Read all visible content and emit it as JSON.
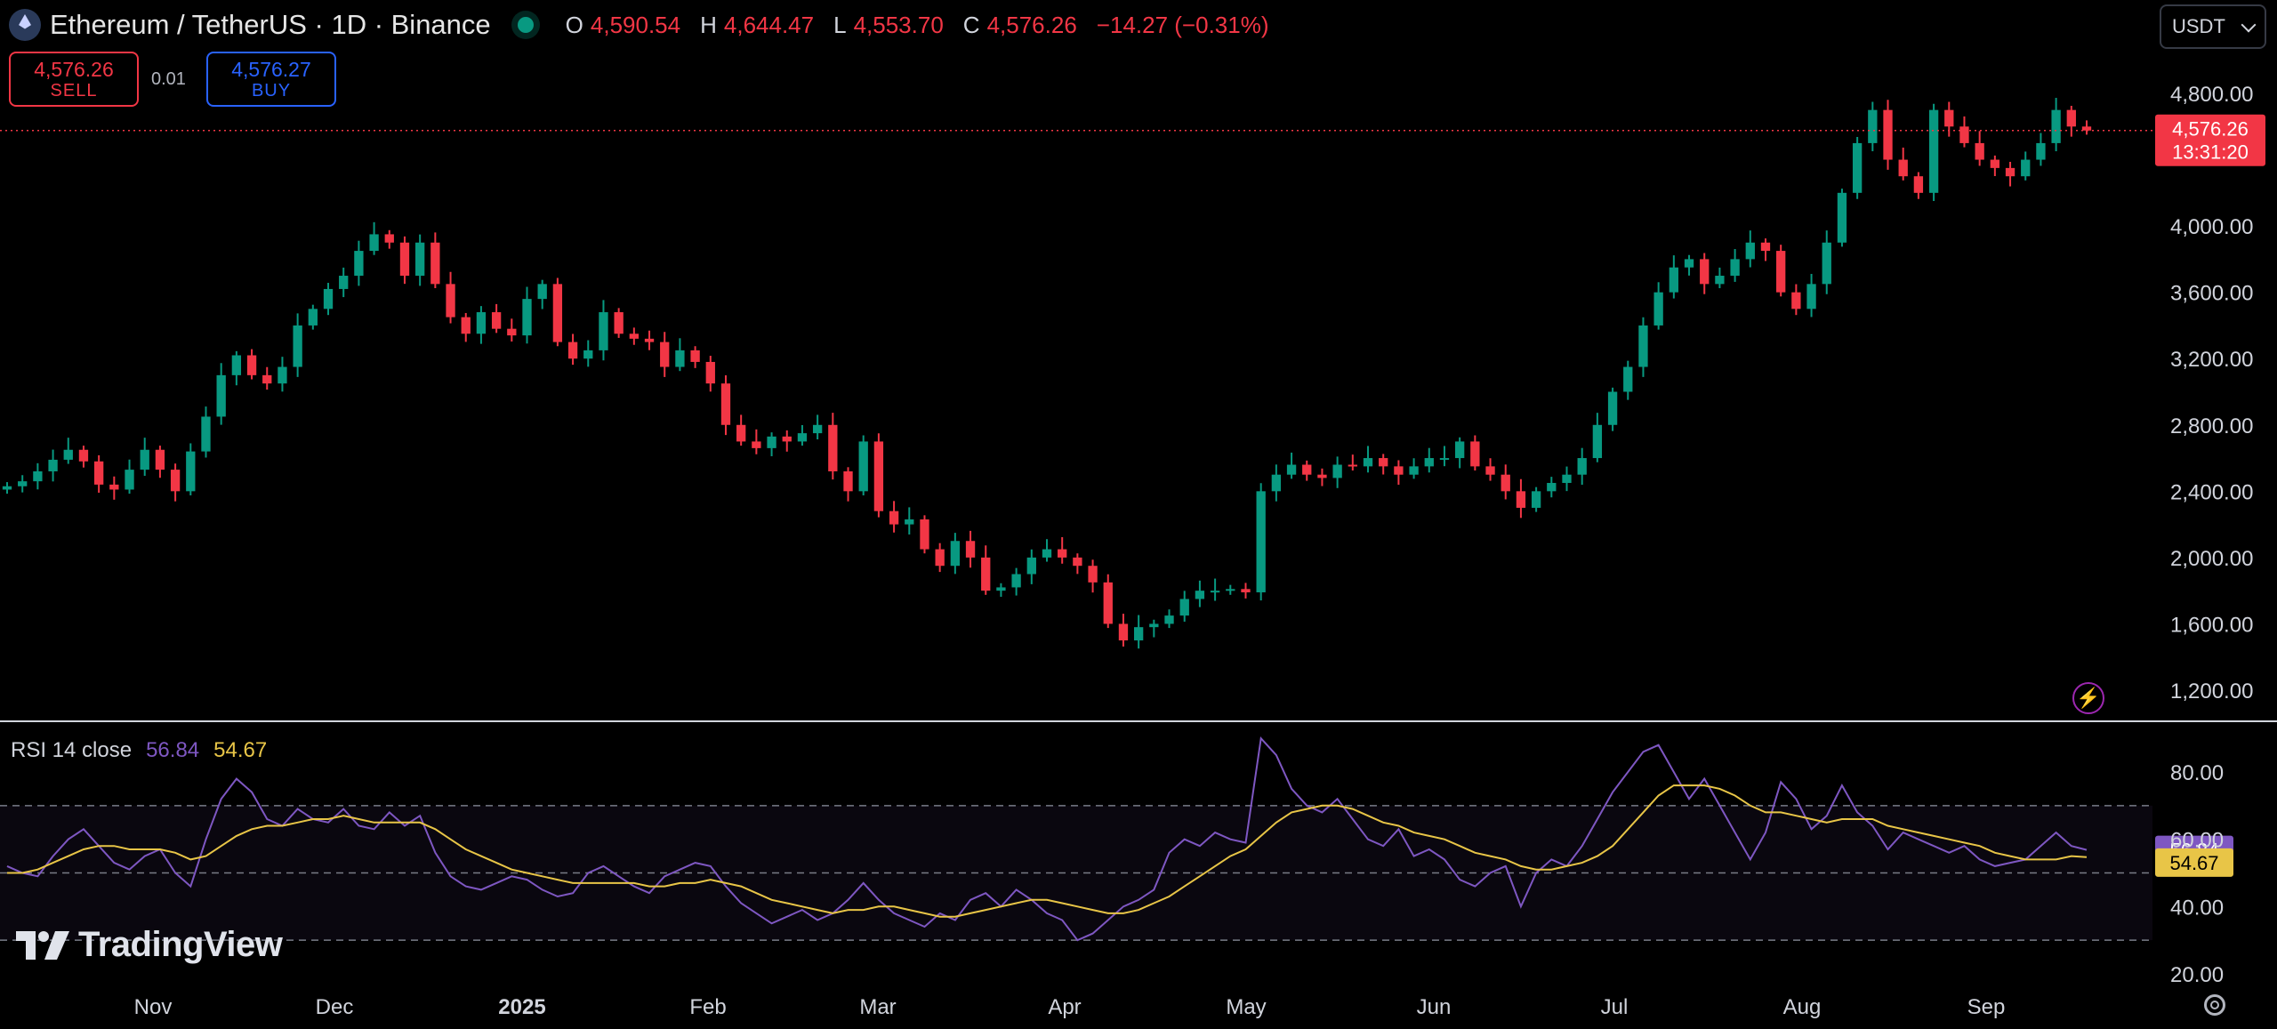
{
  "header": {
    "symbol_title": "Ethereum / TetherUS · 1D · Binance",
    "open_label": "O",
    "open_value": "4,590.54",
    "high_label": "H",
    "high_value": "4,644.47",
    "low_label": "L",
    "low_value": "4,553.70",
    "close_label": "C",
    "close_value": "4,576.26",
    "change": "−14.27 (−0.31%)"
  },
  "trade": {
    "sell_price": "4,576.26",
    "sell_label": "SELL",
    "spread": "0.01",
    "buy_price": "4,576.27",
    "buy_label": "BUY"
  },
  "currency_selector": "USDT",
  "price_badge": {
    "price": "4,576.26",
    "countdown": "13:31:20"
  },
  "rsi": {
    "legend_label": "RSI 14 close",
    "rsi_value": "56.84",
    "ma_value": "54.67"
  },
  "branding": {
    "logo_text": "TradingView"
  },
  "icons": {
    "symbol": "ethereum-icon",
    "live": "market-open-dot-icon",
    "flash": "lightning-icon",
    "settings": "gear-icon",
    "logo": "tradingview-logo-icon"
  },
  "colors": {
    "up": "#089981",
    "down": "#f23645",
    "rsi_line": "#7e57c2",
    "rsi_ma": "#e8c547",
    "buy": "#2962ff",
    "flash": "#9c27b0"
  },
  "chart_data": [
    {
      "type": "candlestick",
      "title": "Ethereum / TetherUS · 1D · Binance",
      "ylim": [
        1100,
        5000
      ],
      "y_ticks": [
        "4,800.00",
        "4,000.00",
        "3,600.00",
        "3,200.00",
        "2,800.00",
        "2,400.00",
        "2,000.00",
        "1,600.00",
        "1,200.00"
      ],
      "x_labels": [
        "Nov",
        "Dec",
        "2025",
        "Feb",
        "Mar",
        "Apr",
        "May",
        "Jun",
        "Jul",
        "Aug",
        "Sep"
      ],
      "last_price": 4576.26,
      "close_series": [
        2430,
        2460,
        2520,
        2590,
        2650,
        2580,
        2440,
        2410,
        2530,
        2650,
        2530,
        2400,
        2640,
        2850,
        3100,
        3220,
        3100,
        3050,
        3150,
        3400,
        3500,
        3620,
        3700,
        3850,
        3950,
        3900,
        3700,
        3900,
        3650,
        3450,
        3350,
        3480,
        3380,
        3340,
        3560,
        3650,
        3300,
        3200,
        3250,
        3480,
        3350,
        3320,
        3300,
        3150,
        3250,
        3180,
        3050,
        2800,
        2700,
        2660,
        2730,
        2700,
        2750,
        2800,
        2520,
        2400,
        2700,
        2280,
        2200,
        2230,
        2050,
        1950,
        2100,
        2000,
        1800,
        1820,
        1900,
        2000,
        2050,
        2000,
        1950,
        1850,
        1600,
        1500,
        1580,
        1600,
        1650,
        1750,
        1800,
        1800,
        1810,
        1790,
        2400,
        2500,
        2560,
        2500,
        2480,
        2560,
        2550,
        2600,
        2550,
        2500,
        2550,
        2600,
        2600,
        2700,
        2550,
        2500,
        2400,
        2300,
        2400,
        2450,
        2500,
        2600,
        2800,
        3000,
        3150,
        3400,
        3600,
        3750,
        3800,
        3650,
        3700,
        3800,
        3900,
        3850,
        3600,
        3500,
        3650,
        3900,
        4200,
        4500,
        4700,
        4400,
        4300,
        4200,
        4700,
        4600,
        4500,
        4400,
        4350,
        4300,
        4400,
        4500,
        4700,
        4600,
        4576
      ],
      "rsi_series": [
        52,
        50,
        49,
        55,
        60,
        63,
        58,
        53,
        51,
        55,
        57,
        50,
        46,
        60,
        72,
        78,
        74,
        66,
        64,
        69,
        66,
        65,
        69,
        64,
        63,
        68,
        64,
        67,
        56,
        49,
        46,
        45,
        47,
        49,
        48,
        45,
        43,
        44,
        50,
        52,
        49,
        46,
        44,
        49,
        51,
        53,
        52,
        46,
        41,
        38,
        35,
        37,
        39,
        36,
        38,
        42,
        47,
        42,
        38,
        36,
        34,
        38,
        36,
        42,
        44,
        40,
        45,
        42,
        38,
        36,
        30,
        32,
        36,
        40,
        42,
        45,
        56,
        60,
        58,
        62,
        60,
        59,
        90,
        85,
        75,
        70,
        68,
        72,
        66,
        60,
        58,
        63,
        55,
        57,
        54,
        48,
        46,
        50,
        52,
        40,
        50,
        54,
        52,
        58,
        66,
        74,
        80,
        86,
        88,
        80,
        72,
        78,
        70,
        62,
        54,
        62,
        77,
        72,
        63,
        67,
        76,
        68,
        64,
        57,
        62,
        60,
        58,
        56,
        58,
        54,
        52,
        53,
        54,
        58,
        62,
        58,
        56.84
      ],
      "rsi_ma_series": [
        50,
        50,
        51,
        53,
        55,
        57,
        58,
        58,
        57,
        57,
        57,
        56,
        54,
        55,
        58,
        61,
        63,
        64,
        64,
        65,
        66,
        66,
        67,
        66,
        65,
        65,
        65,
        65,
        63,
        60,
        57,
        55,
        53,
        51,
        50,
        49,
        48,
        47,
        47,
        47,
        47,
        47,
        46,
        46,
        47,
        47,
        48,
        47,
        46,
        44,
        42,
        41,
        40,
        39,
        38,
        39,
        39,
        40,
        40,
        39,
        38,
        37,
        37,
        38,
        39,
        40,
        41,
        42,
        42,
        41,
        40,
        39,
        38,
        38,
        39,
        41,
        43,
        46,
        49,
        52,
        55,
        57,
        61,
        65,
        68,
        69,
        70,
        70,
        69,
        67,
        65,
        64,
        62,
        61,
        60,
        58,
        56,
        55,
        54,
        52,
        51,
        51,
        52,
        53,
        55,
        58,
        63,
        68,
        73,
        76,
        76,
        76,
        75,
        73,
        70,
        68,
        68,
        67,
        66,
        65,
        66,
        66,
        66,
        64,
        63,
        62,
        61,
        60,
        59,
        58,
        56,
        55,
        54,
        54,
        54,
        55,
        54.67
      ],
      "rsi_axis_ticks": [
        "80.00",
        "60.00",
        "40.00",
        "20.00"
      ],
      "rsi_band": [
        30,
        70
      ]
    }
  ]
}
